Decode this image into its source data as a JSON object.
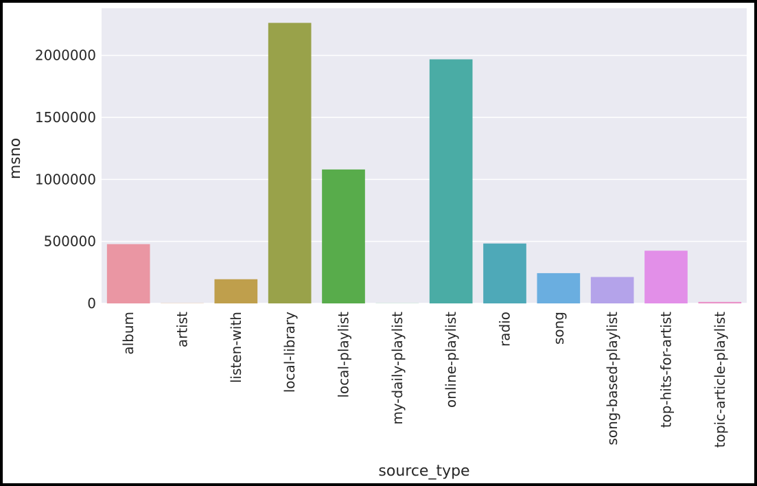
{
  "chart_data": {
    "type": "bar",
    "title": "",
    "xlabel": "source_type",
    "ylabel": "msno",
    "categories": [
      "album",
      "artist",
      "listen-with",
      "local-library",
      "local-playlist",
      "my-daily-playlist",
      "online-playlist",
      "radio",
      "song",
      "song-based-playlist",
      "top-hits-for-artist",
      "topic-article-playlist"
    ],
    "values": [
      478000,
      1500,
      195000,
      2262000,
      1080000,
      1000,
      1968000,
      483000,
      244000,
      213000,
      425000,
      12000
    ],
    "colors": [
      "#ea96a3",
      "#dd9f6f",
      "#bf9f4c",
      "#99a24a",
      "#58ac4b",
      "#52ae7e",
      "#4aaca5",
      "#4ea9b8",
      "#6aaee0",
      "#b4a3ea",
      "#e28fe8",
      "#ea91c8"
    ],
    "ylim": [
      0,
      2380000
    ],
    "yticks": [
      0,
      500000,
      1000000,
      1500000,
      2000000
    ],
    "ytick_labels": [
      "0",
      "500000",
      "1000000",
      "1500000",
      "2000000"
    ],
    "grid": true,
    "background": "#eaeaf2",
    "grid_color": "#ffffff"
  }
}
